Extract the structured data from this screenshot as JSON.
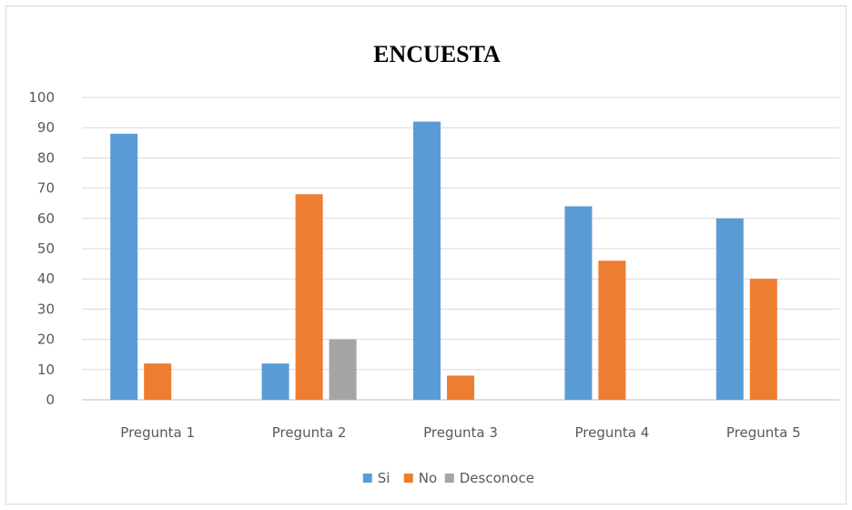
{
  "chart_data": {
    "type": "bar",
    "title": "ENCUESTA",
    "xlabel": "",
    "ylabel": "",
    "categories": [
      "Pregunta 1",
      "Pregunta 2",
      "Pregunta 3",
      "Pregunta 4",
      "Pregunta 5"
    ],
    "series": [
      {
        "name": "Si",
        "color": "#5b9bd5",
        "values": [
          88,
          12,
          92,
          64,
          60
        ]
      },
      {
        "name": "No",
        "color": "#ed7d31",
        "values": [
          12,
          68,
          8,
          46,
          40
        ]
      },
      {
        "name": "Desconoce",
        "color": "#a5a5a5",
        "values": [
          null,
          20,
          null,
          null,
          null
        ]
      }
    ],
    "ylim": [
      0,
      100
    ],
    "yticks": [
      "0",
      "10",
      "20",
      "30",
      "40",
      "50",
      "60",
      "70",
      "80",
      "90",
      "100"
    ],
    "grid": true,
    "legend_position": "bottom"
  }
}
